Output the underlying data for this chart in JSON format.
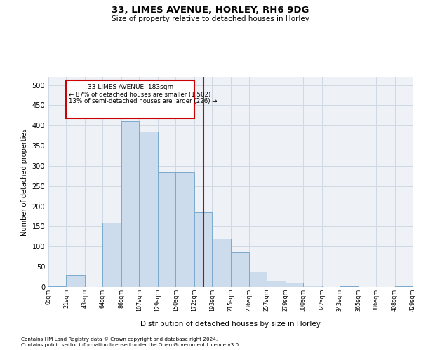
{
  "title1": "33, LIMES AVENUE, HORLEY, RH6 9DG",
  "title2": "Size of property relative to detached houses in Horley",
  "xlabel": "Distribution of detached houses by size in Horley",
  "ylabel": "Number of detached properties",
  "footnote1": "Contains HM Land Registry data © Crown copyright and database right 2024.",
  "footnote2": "Contains public sector information licensed under the Open Government Licence v3.0.",
  "annotation_title": "33 LIMES AVENUE: 183sqm",
  "annotation_line1": "← 87% of detached houses are smaller (1,502)",
  "annotation_line2": "13% of semi-detached houses are larger (226) →",
  "bar_color": "#ccdcec",
  "bar_edge_color": "#7aaace",
  "vline_color": "#cc0000",
  "vline_x": 183,
  "bin_edges": [
    0,
    21,
    43,
    64,
    86,
    107,
    129,
    150,
    172,
    193,
    215,
    236,
    257,
    279,
    300,
    322,
    343,
    365,
    386,
    408,
    429
  ],
  "bar_heights": [
    2,
    30,
    0,
    160,
    410,
    385,
    285,
    285,
    185,
    120,
    87,
    38,
    15,
    10,
    3,
    0,
    2,
    0,
    0,
    2
  ],
  "xlim": [
    0,
    429
  ],
  "ylim": [
    0,
    520
  ],
  "yticks": [
    0,
    50,
    100,
    150,
    200,
    250,
    300,
    350,
    400,
    450,
    500
  ],
  "xtick_labels": [
    "0sqm",
    "21sqm",
    "43sqm",
    "64sqm",
    "86sqm",
    "107sqm",
    "129sqm",
    "150sqm",
    "172sqm",
    "193sqm",
    "215sqm",
    "236sqm",
    "257sqm",
    "279sqm",
    "300sqm",
    "322sqm",
    "343sqm",
    "365sqm",
    "386sqm",
    "408sqm",
    "429sqm"
  ],
  "grid_color": "#d0d8e4",
  "background_color": "#eef2f7"
}
